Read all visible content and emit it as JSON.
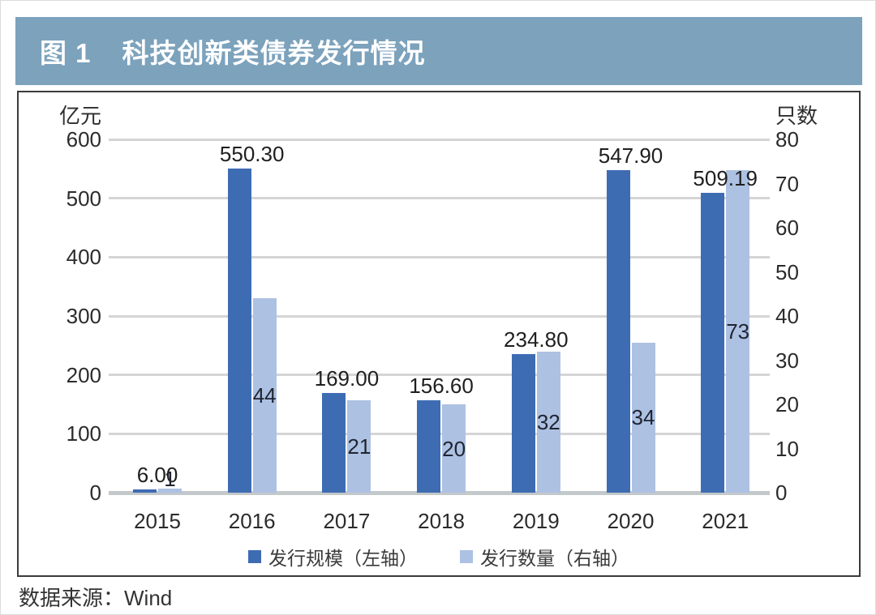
{
  "figure": {
    "label": "图 1",
    "title": "科技创新类债券发行情况"
  },
  "source": "数据来源：Wind",
  "colors": {
    "title_bar_bg": "#7ca2bc",
    "title_text": "#ffffff",
    "scale_bar": "#3e6cb3",
    "count_bar": "#adc1e3",
    "gridline": "#d5d5d5",
    "axis_line": "#c3c8cb",
    "panel_border": "#3b3b3b"
  },
  "chart_data": {
    "type": "bar",
    "title": "科技创新类债券发行情况",
    "categories": [
      "2015",
      "2016",
      "2017",
      "2018",
      "2019",
      "2020",
      "2021"
    ],
    "series": [
      {
        "name": "发行规模（左轴）",
        "axis": "left",
        "color": "#3e6cb3",
        "values": [
          6.0,
          550.3,
          169.0,
          156.6,
          234.8,
          547.9,
          509.19
        ],
        "labels": [
          "6.00",
          "550.30",
          "169.00",
          "156.60",
          "234.80",
          "547.90",
          "509.19"
        ]
      },
      {
        "name": "发行数量（右轴）",
        "axis": "right",
        "color": "#adc1e3",
        "values": [
          1,
          44,
          21,
          20,
          32,
          34,
          73
        ],
        "labels": [
          "1",
          "44",
          "21",
          "20",
          "32",
          "34",
          "73"
        ]
      }
    ],
    "left_axis": {
      "title": "亿元",
      "min": 0,
      "max": 600,
      "step": 100,
      "ticks": [
        600,
        500,
        400,
        300,
        200,
        100,
        0
      ]
    },
    "right_axis": {
      "title": "只数",
      "min": 0,
      "max": 80,
      "step": 10,
      "ticks": [
        80,
        70,
        60,
        50,
        40,
        30,
        20,
        10,
        0
      ]
    },
    "legend": [
      "发行规模（左轴）",
      "发行数量（右轴）"
    ],
    "legend_position": "bottom",
    "grid": true
  }
}
